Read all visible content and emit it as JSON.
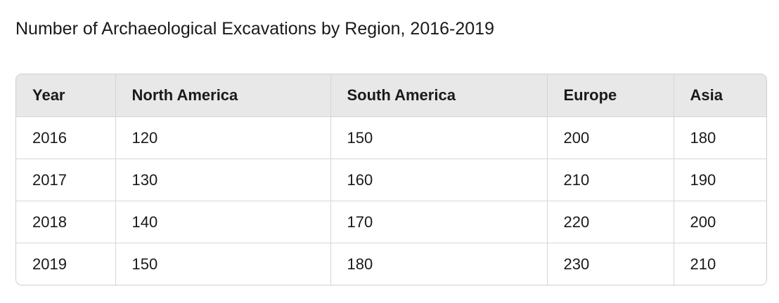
{
  "title": "Number of Archaeological Excavations by Region, 2016-2019",
  "table": {
    "header": [
      "Year",
      "North America",
      "South America",
      "Europe",
      "Asia"
    ],
    "rows": [
      [
        2016,
        120,
        150,
        200,
        180
      ],
      [
        2017,
        130,
        160,
        210,
        190
      ],
      [
        2018,
        140,
        170,
        220,
        200
      ],
      [
        2019,
        150,
        180,
        230,
        210
      ]
    ]
  }
}
